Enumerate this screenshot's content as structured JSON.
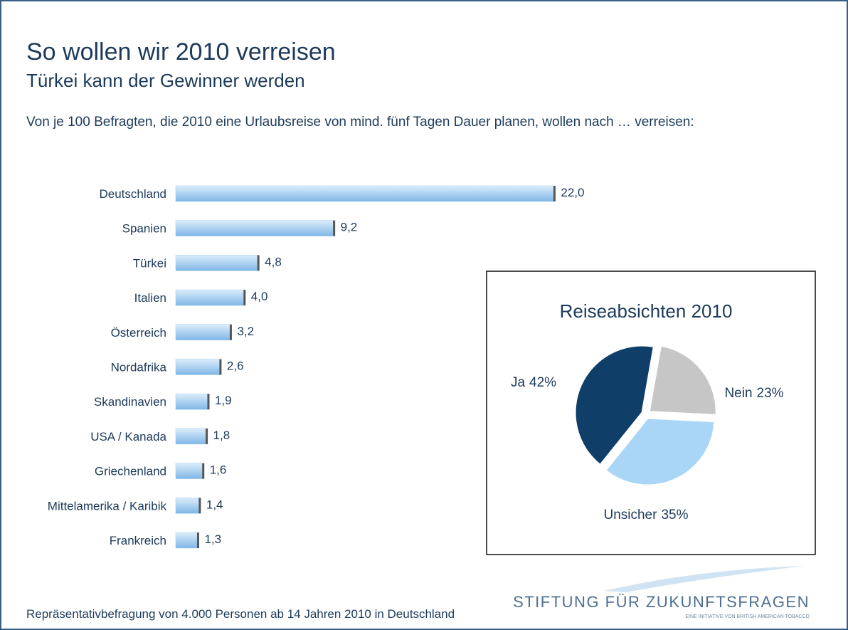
{
  "title": "So wollen wir 2010 verreisen",
  "subtitle": "Türkei kann der Gewinner werden",
  "description": "Von je 100 Befragten, die 2010 eine Urlaubsreise von mind. fünf Tagen Dauer planen, wollen nach … verreisen:",
  "footer": "Repräsentativbefragung von 4.000 Personen ab 14 Jahren 2010 in Deutschland",
  "logo": {
    "name": "STIFTUNG FÜR ZUKUNFTSFRAGEN",
    "tagline": "EINE INITIATIVE VON BRITISH AMERICAN TOBACCO"
  },
  "chart_data": [
    {
      "type": "bar",
      "orientation": "horizontal",
      "color": "#9fcbf0",
      "categories": [
        "Deutschland",
        "Spanien",
        "Türkei",
        "Italien",
        "Österreich",
        "Nordafrika",
        "Skandinavien",
        "USA / Kanada",
        "Griechenland",
        "Mittelamerika / Karibik",
        "Frankreich"
      ],
      "values": [
        22.0,
        9.2,
        4.8,
        4.0,
        3.2,
        2.6,
        1.9,
        1.8,
        1.6,
        1.4,
        1.3
      ],
      "value_labels": [
        "22,0",
        "9,2",
        "4,8",
        "4,0",
        "3,2",
        "2,6",
        "1,9",
        "1,8",
        "1,6",
        "1,4",
        "1,3"
      ]
    },
    {
      "type": "pie",
      "title": "Reiseabsichten 2010",
      "categories": [
        "Ja",
        "Nein",
        "Unsicher"
      ],
      "values": [
        42,
        23,
        35
      ],
      "value_labels": [
        "42%",
        "23%",
        "35%"
      ],
      "colors": [
        "#0f3e68",
        "#c6c6c6",
        "#a9d5f6"
      ]
    }
  ]
}
